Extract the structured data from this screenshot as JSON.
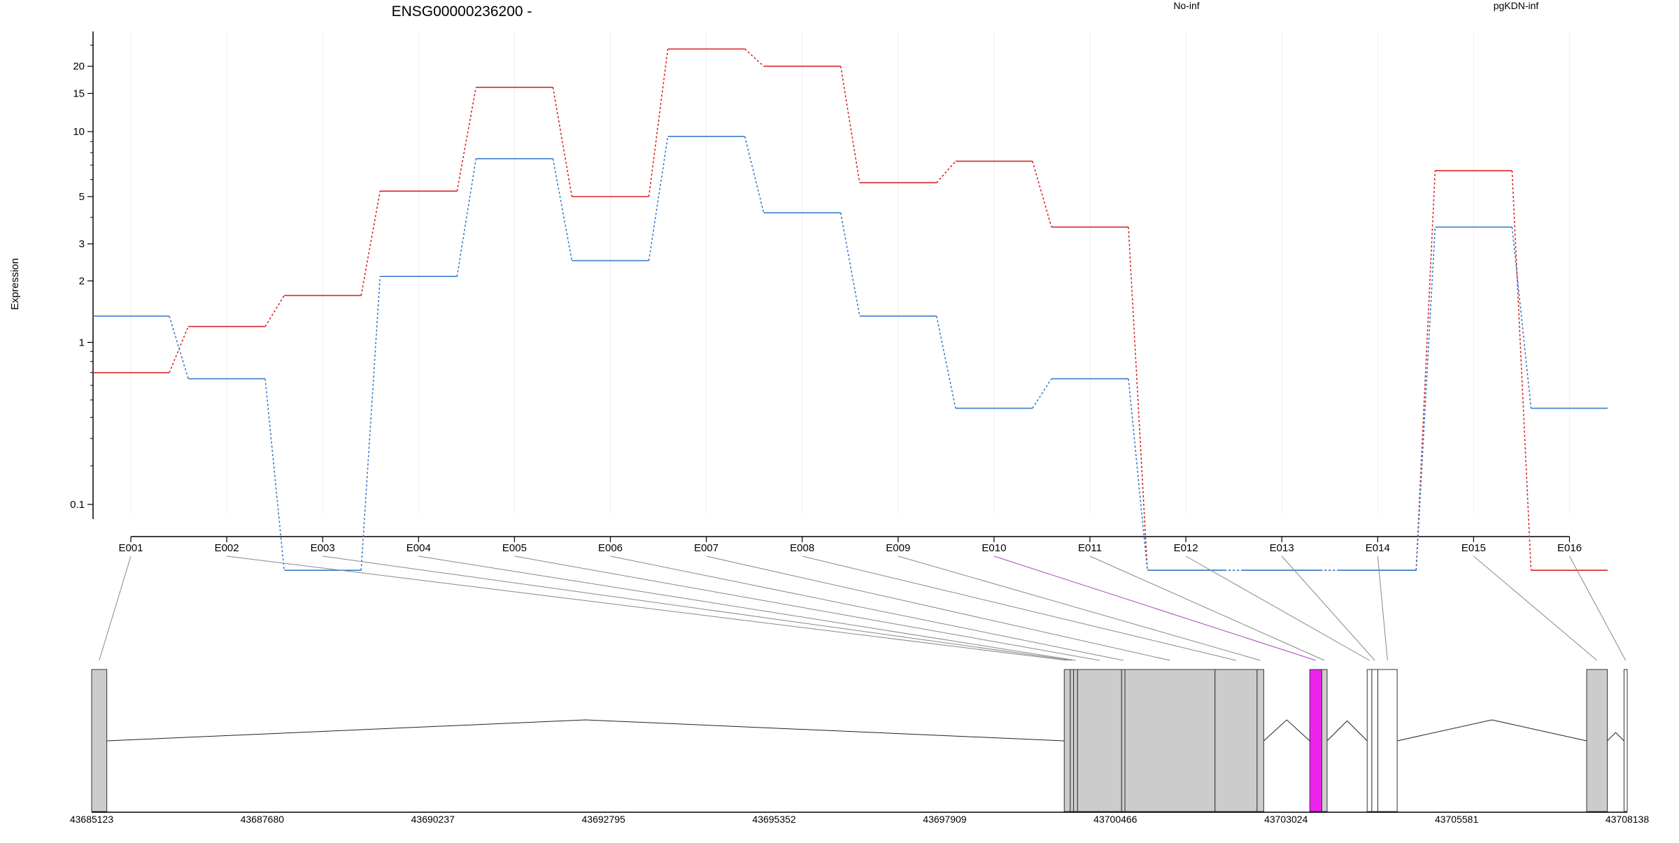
{
  "chart_data": {
    "type": "line",
    "title": "ENSG00000236200 -",
    "ylabel": "Expression",
    "xlabel": "",
    "y_scale": "log10(x+0.1) style",
    "y_ticks": [
      0.1,
      1,
      2,
      3,
      5,
      10,
      15,
      20
    ],
    "categories": [
      "E001",
      "E002",
      "E003",
      "E004",
      "E005",
      "E006",
      "E007",
      "E008",
      "E009",
      "E010",
      "E011",
      "E012",
      "E013",
      "E014",
      "E015",
      "E016"
    ],
    "highlighted_exon": "E010",
    "legend_placement": "top",
    "series": [
      {
        "name": "No-inf",
        "color": "#d62728",
        "values": [
          0.7,
          1.2,
          1.7,
          5.3,
          16.0,
          5.0,
          24.0,
          20.0,
          5.8,
          7.3,
          3.6,
          0.0,
          0.0,
          0.0,
          6.6,
          0.0
        ]
      },
      {
        "name": "pgKDN-inf",
        "color": "#3a7dc9",
        "values": [
          1.35,
          0.65,
          0.0,
          2.1,
          7.5,
          2.5,
          9.5,
          4.2,
          1.35,
          0.45,
          0.65,
          0.0,
          0.0,
          0.0,
          3.6,
          0.45
        ]
      }
    ],
    "gene_model": {
      "coord_ticks": [
        "43685123",
        "43687680",
        "43690237",
        "43692795",
        "43695352",
        "43697909",
        "43700466",
        "43703024",
        "43705581",
        "43708138"
      ],
      "coord_range": [
        43685123,
        43708138
      ],
      "exons": [
        {
          "id": "E001",
          "start": 43685123,
          "end": 43685350,
          "fill": "#cccccc"
        },
        {
          "id": "E002",
          "start": 43699700,
          "end": 43699790,
          "fill": "#cccccc"
        },
        {
          "id": "E003",
          "start": 43699790,
          "end": 43699840,
          "fill": "#cccccc"
        },
        {
          "id": "E004",
          "start": 43699840,
          "end": 43699900,
          "fill": "#cccccc"
        },
        {
          "id": "E005",
          "start": 43699900,
          "end": 43700560,
          "fill": "#cccccc"
        },
        {
          "id": "E006",
          "start": 43700560,
          "end": 43700610,
          "fill": "#cccccc"
        },
        {
          "id": "E007",
          "start": 43700610,
          "end": 43701960,
          "fill": "#cccccc"
        },
        {
          "id": "E008",
          "start": 43701960,
          "end": 43702590,
          "fill": "#cccccc"
        },
        {
          "id": "E009",
          "start": 43702590,
          "end": 43702690,
          "fill": "#cccccc"
        },
        {
          "id": "E010",
          "start": 43703380,
          "end": 43703560,
          "fill": "#ee22ee"
        },
        {
          "id": "E011",
          "start": 43703560,
          "end": 43703640,
          "fill": "#cccccc"
        },
        {
          "id": "E012",
          "start": 43704240,
          "end": 43704310,
          "fill": "#ffffff"
        },
        {
          "id": "E013",
          "start": 43704310,
          "end": 43704400,
          "fill": "#ffffff"
        },
        {
          "id": "E014",
          "start": 43704400,
          "end": 43704690,
          "fill": "#ffffff"
        },
        {
          "id": "E015",
          "start": 43707530,
          "end": 43707840,
          "fill": "#cccccc"
        },
        {
          "id": "E016",
          "start": 43708090,
          "end": 43708138,
          "fill": "#ffffff"
        }
      ]
    }
  }
}
